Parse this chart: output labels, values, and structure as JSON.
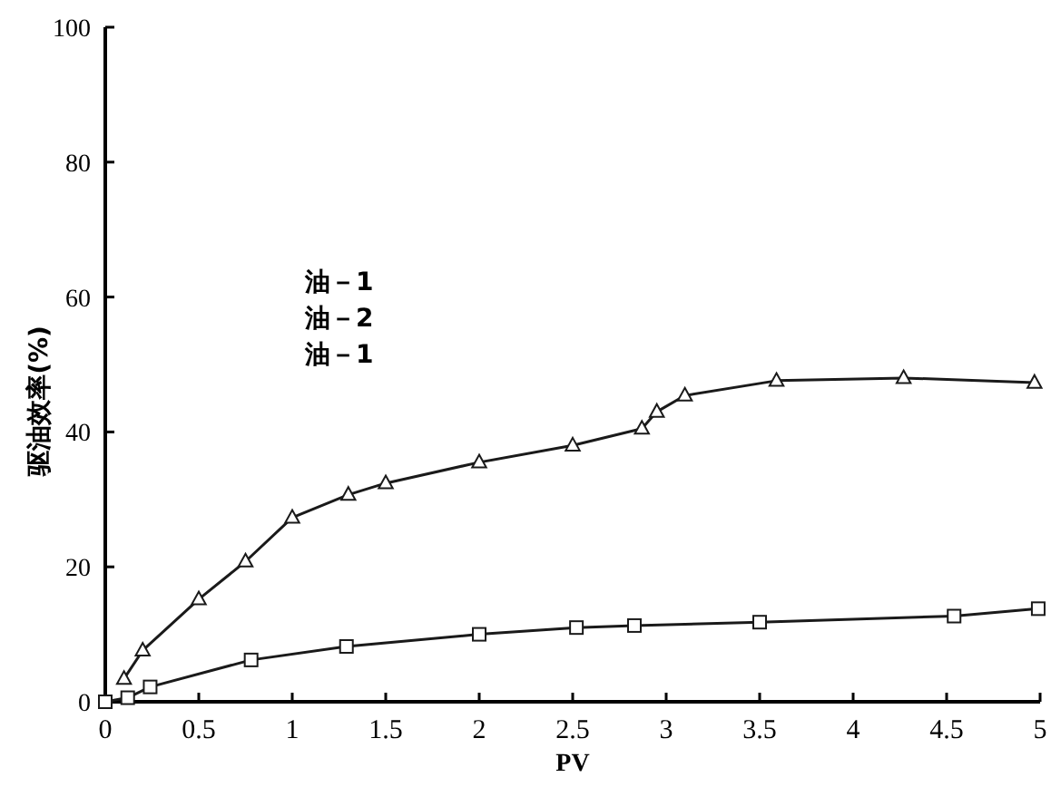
{
  "chart_data": {
    "type": "line",
    "xlabel": "PV",
    "ylabel": "驱油效率(%)",
    "annotations": [
      "油－1",
      "油－2",
      "油－1"
    ],
    "xlim": [
      0,
      5
    ],
    "ylim": [
      0,
      100
    ],
    "xticks": [
      0,
      0.5,
      1,
      1.5,
      2,
      2.5,
      3,
      3.5,
      4,
      4.5,
      5
    ],
    "yticks": [
      0,
      20,
      40,
      60,
      80,
      100
    ],
    "grid": false,
    "line_style": "solid",
    "series": [
      {
        "color": "#1a1a1a",
        "marker": "triangle",
        "x": [
          0.1,
          0.2,
          0.5,
          0.75,
          1.0,
          1.3,
          1.5,
          2.0,
          2.5,
          2.87,
          2.95,
          3.1,
          3.59,
          4.27,
          4.97
        ],
        "values": [
          3.4,
          7.6,
          15.2,
          20.8,
          27.3,
          30.7,
          32.4,
          35.5,
          38.0,
          40.5,
          43.0,
          45.4,
          47.6,
          48.0,
          47.3
        ]
      },
      {
        "color": "#1a1a1a",
        "marker": "square",
        "x": [
          0,
          0.12,
          0.24,
          0.78,
          1.29,
          2.0,
          2.52,
          2.83,
          3.5,
          4.54,
          4.99
        ],
        "values": [
          0,
          0.6,
          2.2,
          6.2,
          8.2,
          10.0,
          11.0,
          11.3,
          11.8,
          12.7,
          13.8
        ]
      }
    ]
  }
}
